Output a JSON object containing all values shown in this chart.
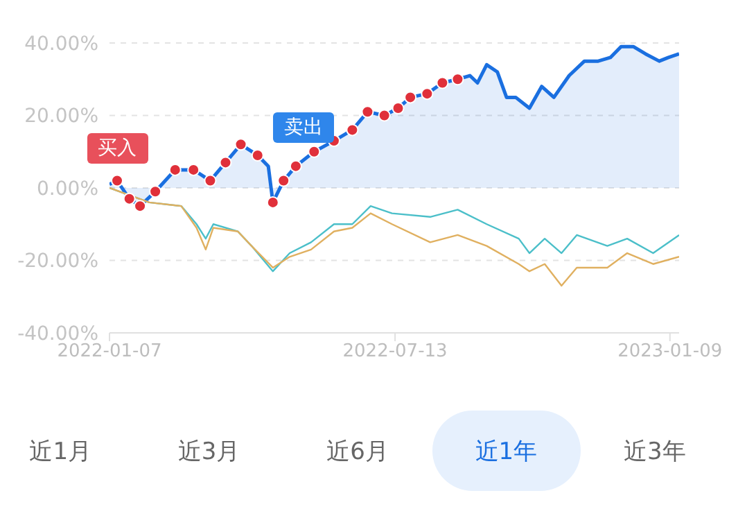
{
  "chart_data": {
    "type": "line",
    "xlim": [
      "2022-01-07",
      "2023-01-15"
    ],
    "xticks": [
      "2022-01-07",
      "2022-07-13",
      "2023-01-09"
    ],
    "ylim": [
      -40,
      40
    ],
    "yticks": [
      {
        "value": -40,
        "label": "-40.00%"
      },
      {
        "value": -20,
        "label": "-20.00%"
      },
      {
        "value": 0,
        "label": "0.00%"
      },
      {
        "value": 20,
        "label": "20.00%"
      },
      {
        "value": 40,
        "label": "40.00%"
      }
    ],
    "grid": "y",
    "legend": false,
    "series": [
      {
        "type": "area",
        "color": "#1a6fe0",
        "x": [
          "2022-01-07",
          "2022-01-12",
          "2022-01-20",
          "2022-01-27",
          "2022-02-06",
          "2022-02-19",
          "2022-03-03",
          "2022-03-14",
          "2022-03-24",
          "2022-04-03",
          "2022-04-14",
          "2022-04-21",
          "2022-04-24",
          "2022-05-01",
          "2022-05-09",
          "2022-05-21",
          "2022-06-03",
          "2022-06-15",
          "2022-06-25",
          "2022-07-06",
          "2022-07-15",
          "2022-07-23",
          "2022-08-03",
          "2022-08-13",
          "2022-08-23",
          "2022-08-31",
          "2022-09-05",
          "2022-09-11",
          "2022-09-18",
          "2022-09-24",
          "2022-09-30",
          "2022-10-09",
          "2022-10-17",
          "2022-10-25",
          "2022-11-04",
          "2022-11-14",
          "2022-11-23",
          "2022-12-01",
          "2022-12-08",
          "2022-12-16",
          "2022-12-24",
          "2023-01-02",
          "2023-01-08",
          "2023-01-15"
        ],
        "values": [
          1,
          2,
          -3,
          -5,
          -1,
          5,
          5,
          2,
          7,
          12,
          9,
          6,
          -4,
          2,
          6,
          10,
          13,
          16,
          21,
          20,
          22,
          25,
          26,
          29,
          30,
          31,
          29,
          34,
          32,
          25,
          25,
          22,
          28,
          25,
          31,
          35,
          35,
          36,
          39,
          39,
          37,
          35,
          36,
          37
        ]
      },
      {
        "type": "scatter",
        "color": "#e0303a",
        "x": [
          "2022-01-12",
          "2022-01-20",
          "2022-01-27",
          "2022-02-06",
          "2022-02-19",
          "2022-03-03",
          "2022-03-14",
          "2022-03-24",
          "2022-04-03",
          "2022-04-14",
          "2022-04-24",
          "2022-05-01",
          "2022-05-09",
          "2022-05-21",
          "2022-06-03",
          "2022-06-15",
          "2022-06-25",
          "2022-07-06",
          "2022-07-15",
          "2022-07-23",
          "2022-08-03",
          "2022-08-13",
          "2022-08-23"
        ],
        "values": [
          2,
          -3,
          -5,
          -1,
          5,
          5,
          2,
          7,
          12,
          9,
          -4,
          2,
          6,
          10,
          13,
          16,
          21,
          20,
          22,
          25,
          26,
          29,
          30
        ]
      },
      {
        "color": "#4bbfc9",
        "x": [
          "2022-01-07",
          "2022-02-02",
          "2022-02-23",
          "2022-03-05",
          "2022-03-11",
          "2022-03-16",
          "2022-04-01",
          "2022-04-10",
          "2022-04-24",
          "2022-05-05",
          "2022-05-19",
          "2022-06-03",
          "2022-06-15",
          "2022-06-27",
          "2022-07-11",
          "2022-08-05",
          "2022-08-23",
          "2022-09-11",
          "2022-10-02",
          "2022-10-09",
          "2022-10-19",
          "2022-10-30",
          "2022-11-09",
          "2022-11-29",
          "2022-12-12",
          "2022-12-29",
          "2023-01-15"
        ],
        "values": [
          0,
          -4,
          -5,
          -10,
          -14,
          -10,
          -12,
          -16,
          -23,
          -18,
          -15,
          -10,
          -10,
          -5,
          -7,
          -8,
          -6,
          -10,
          -14,
          -18,
          -14,
          -18,
          -13,
          -16,
          -14,
          -18,
          -13
        ]
      },
      {
        "color": "#e0b060",
        "x": [
          "2022-01-07",
          "2022-02-02",
          "2022-02-23",
          "2022-03-05",
          "2022-03-11",
          "2022-03-16",
          "2022-04-01",
          "2022-04-10",
          "2022-04-24",
          "2022-05-05",
          "2022-05-19",
          "2022-06-03",
          "2022-06-15",
          "2022-06-27",
          "2022-07-11",
          "2022-08-05",
          "2022-08-23",
          "2022-09-11",
          "2022-10-02",
          "2022-10-09",
          "2022-10-19",
          "2022-10-30",
          "2022-11-09",
          "2022-11-29",
          "2022-12-12",
          "2022-12-29",
          "2023-01-15"
        ],
        "values": [
          0,
          -4,
          -5,
          -11,
          -17,
          -11,
          -12,
          -16,
          -22,
          -19,
          -17,
          -12,
          -11,
          -7,
          -10,
          -15,
          -13,
          -16,
          -21,
          -23,
          -21,
          -27,
          -22,
          -22,
          -18,
          -21,
          -19
        ]
      }
    ],
    "annotations": [
      {
        "text": "买入",
        "x": "2022-01-12",
        "y": 2
      },
      {
        "text": "卖出",
        "x": "2022-05-14",
        "y": 8
      },
      "近1月",
      "近3月",
      "近6月",
      "近1年",
      "近3年"
    ]
  }
}
